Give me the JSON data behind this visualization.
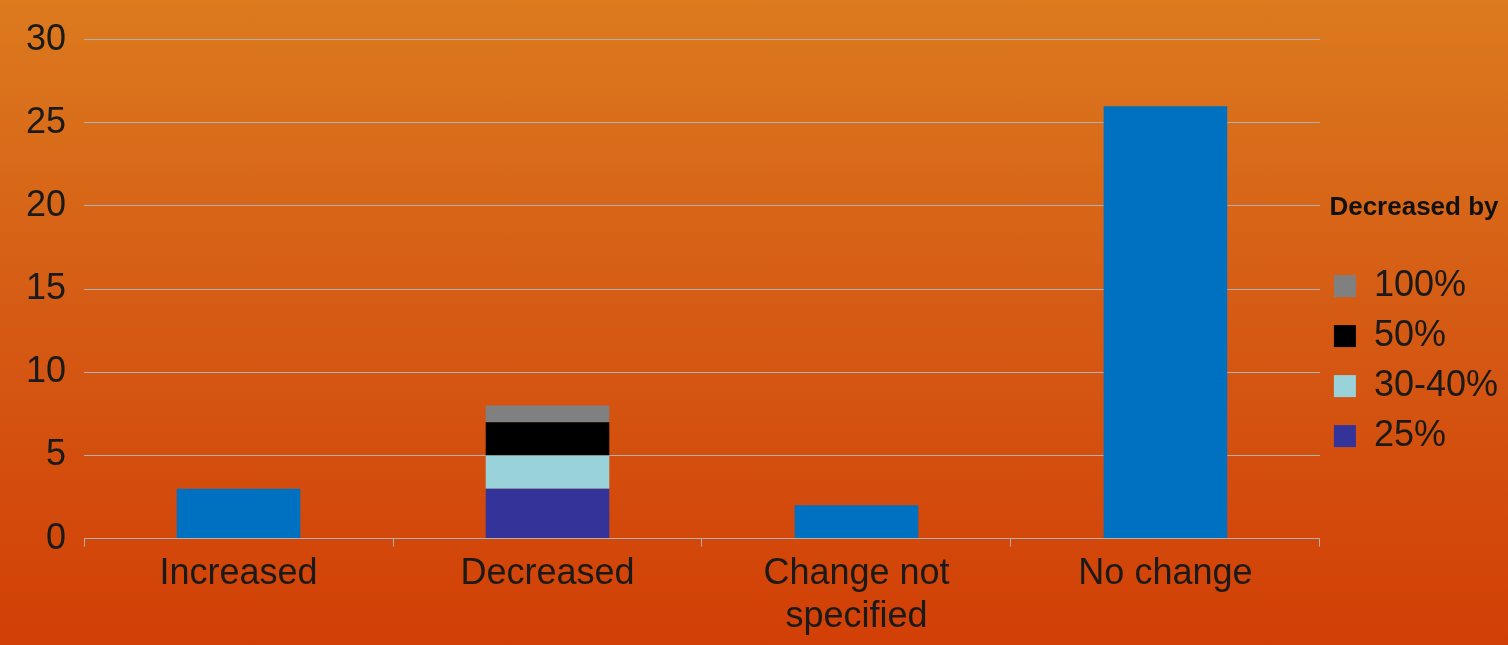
{
  "chart_data": {
    "type": "bar",
    "stacked": true,
    "legend_title": "Decreased by",
    "categories": [
      "Increased",
      "Decreased",
      "Change not specified",
      "No change"
    ],
    "series": [
      {
        "color": "#0070c0",
        "values": [
          3,
          null,
          2,
          26
        ]
      },
      {
        "name": "25%",
        "color": "#333399",
        "values": [
          null,
          3,
          null,
          null
        ]
      },
      {
        "name": "30-40%",
        "color": "#99d3d9",
        "values": [
          null,
          2,
          null,
          null
        ]
      },
      {
        "name": "50%",
        "color": "#000000",
        "values": [
          null,
          2,
          null,
          null
        ]
      },
      {
        "name": "100%",
        "color": "#808080",
        "values": [
          null,
          1,
          null,
          null
        ]
      }
    ],
    "ylim": [
      0,
      30
    ],
    "yticks": [
      0,
      5,
      10,
      15,
      20,
      25,
      30
    ],
    "grid": "y",
    "legend": "right"
  }
}
